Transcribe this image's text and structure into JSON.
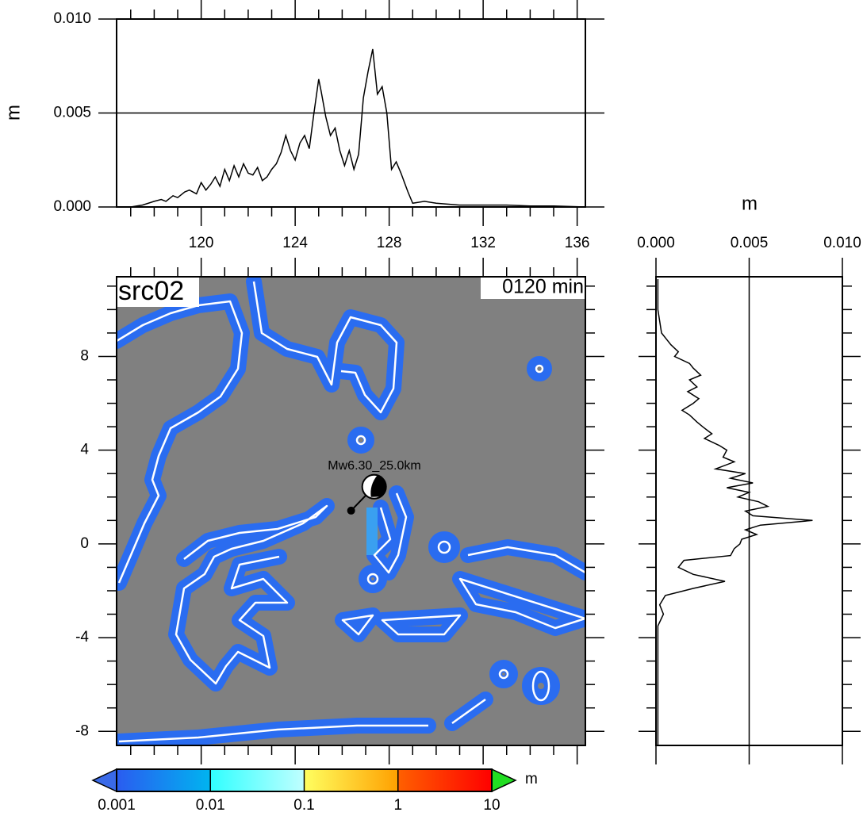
{
  "chart_data": [
    {
      "type": "line",
      "ylabel": "m",
      "color": "#000000",
      "x": [
        116.4,
        117,
        117.5,
        118,
        118.3,
        118.5,
        118.8,
        119,
        119.3,
        119.5,
        119.8,
        120,
        120.2,
        120.4,
        120.6,
        120.8,
        121,
        121.2,
        121.4,
        121.6,
        121.8,
        122,
        122.2,
        122.4,
        122.6,
        122.8,
        123,
        123.2,
        123.4,
        123.6,
        123.8,
        124,
        124.2,
        124.4,
        124.6,
        124.8,
        125,
        125.1,
        125.3,
        125.5,
        125.7,
        125.9,
        126.1,
        126.3,
        126.5,
        126.7,
        126.9,
        127.1,
        127.3,
        127.5,
        127.7,
        127.9,
        128.1,
        128.3,
        128.5,
        128.8,
        129,
        129.5,
        130,
        131,
        132,
        133,
        134,
        135,
        136.35
      ],
      "values": [
        0,
        0,
        0.0001,
        0.0003,
        0.0004,
        0.0003,
        0.0006,
        0.0005,
        0.0008,
        0.0009,
        0.0007,
        0.0013,
        0.0009,
        0.0012,
        0.0016,
        0.0011,
        0.002,
        0.0014,
        0.0022,
        0.0016,
        0.0023,
        0.0018,
        0.0017,
        0.0021,
        0.0014,
        0.0016,
        0.002,
        0.0023,
        0.0029,
        0.0038,
        0.003,
        0.0025,
        0.0034,
        0.0038,
        0.0031,
        0.005,
        0.0068,
        0.0062,
        0.0048,
        0.0038,
        0.0042,
        0.003,
        0.0022,
        0.003,
        0.002,
        0.0028,
        0.0058,
        0.0072,
        0.0084,
        0.006,
        0.0064,
        0.005,
        0.002,
        0.0024,
        0.0018,
        0.0008,
        0.0002,
        0.0003,
        0.0002,
        0.0001,
        0.0001,
        0.0001,
        5e-05,
        5e-05,
        0
      ],
      "xlim": [
        116.4,
        136.35
      ],
      "xticks": [
        120,
        124,
        128,
        132,
        136
      ],
      "xticks_minor": [
        117,
        118,
        119,
        121,
        122,
        123,
        125,
        126,
        127,
        129,
        130,
        131,
        133,
        134,
        135
      ],
      "ylim": [
        0,
        0.01
      ],
      "yticks": [
        {
          "value": 0,
          "label": "0.000"
        },
        {
          "value": 0.005,
          "label": "0.005"
        },
        {
          "value": 0.01,
          "label": "0.010"
        }
      ],
      "grid": true
    },
    {
      "type": "map",
      "title": "src02",
      "subtitle": "0120 min",
      "annotation": "Mw6.30_25.0km",
      "epicenter": {
        "lon": 126.38,
        "lat": 1.42
      },
      "mechanism": {
        "lon": 127.36,
        "lat": 2.44
      },
      "xlim": [
        116.4,
        136.35
      ],
      "xticks": [
        120,
        124,
        128,
        132,
        136
      ],
      "xticks_minor": [
        117,
        118,
        119,
        121,
        122,
        123,
        125,
        126,
        127,
        129,
        130,
        131,
        133,
        134,
        135
      ],
      "ylim": [
        -8.6,
        11.4
      ],
      "yticks": [
        8,
        4,
        0,
        -4,
        -8
      ],
      "yticks_minor": [
        11,
        10,
        9,
        7,
        6,
        5,
        3,
        2,
        1,
        -1,
        -2,
        -3,
        -5,
        -6,
        -7
      ]
    },
    {
      "type": "hline",
      "xlabel": "m",
      "color": "#000000",
      "y": [
        11.3,
        10.5,
        10,
        9.5,
        9,
        8.7,
        8.5,
        8.2,
        8,
        7.7,
        7.5,
        7.2,
        7,
        6.7,
        6.5,
        6.2,
        6,
        5.7,
        5.5,
        5.2,
        5,
        4.7,
        4.5,
        4.2,
        4,
        3.7,
        3.5,
        3.2,
        3,
        2.8,
        2.6,
        2.4,
        2.2,
        2,
        1.8,
        1.6,
        1.4,
        1.2,
        1,
        0.8,
        0.6,
        0.4,
        0.2,
        0,
        -0.2,
        -0.5,
        -0.7,
        -1,
        -1.3,
        -1.6,
        -1.9,
        -2.2,
        -2.6,
        -3,
        -3.5,
        -4,
        -5,
        -6,
        -7,
        -8.6
      ],
      "values": [
        0.0001,
        0.0001,
        0.0001,
        0.0002,
        0.0003,
        0.0006,
        0.0008,
        0.0012,
        0.001,
        0.0018,
        0.002,
        0.0024,
        0.0018,
        0.0022,
        0.0017,
        0.0023,
        0.002,
        0.0014,
        0.0018,
        0.0022,
        0.0025,
        0.003,
        0.0026,
        0.0034,
        0.0038,
        0.0036,
        0.0042,
        0.0032,
        0.0048,
        0.004,
        0.0052,
        0.0038,
        0.005,
        0.0044,
        0.0055,
        0.006,
        0.0048,
        0.0052,
        0.0084,
        0.0056,
        0.0048,
        0.0054,
        0.0046,
        0.0045,
        0.0042,
        0.004,
        0.0015,
        0.0012,
        0.002,
        0.0037,
        0.002,
        0.0005,
        0.0002,
        0.0004,
        0.0001,
        0.0001,
        0.0001,
        0.0001,
        0.0001,
        0.0001
      ],
      "xlim": [
        0,
        0.01
      ],
      "xticks": [
        {
          "value": 0,
          "label": "0.000"
        },
        {
          "value": 0.005,
          "label": "0.005"
        },
        {
          "value": 0.01,
          "label": "0.010"
        }
      ],
      "ylim": [
        -8.6,
        11.4
      ],
      "grid": true
    },
    {
      "type": "colorbar",
      "unit": "m",
      "log": true,
      "levels": [
        0.001,
        0.01,
        0.1,
        1,
        10
      ],
      "colors": [
        [
          "#2a5cf0",
          "#00b4f0"
        ],
        [
          "#30ffff",
          "#c0ffff"
        ],
        [
          "#ffff60",
          "#ffa000"
        ],
        [
          "#ff6000",
          "#ff0000"
        ]
      ],
      "under_color": "#3a6ae8",
      "over_color": "#22dd22"
    }
  ]
}
